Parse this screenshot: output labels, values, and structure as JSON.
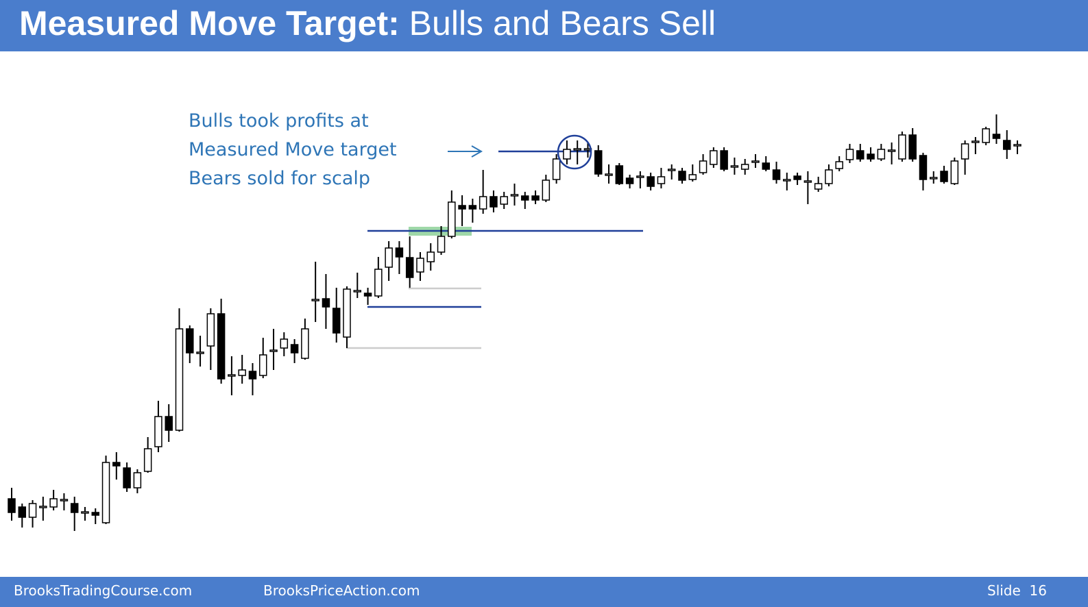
{
  "header": {
    "title": "Measured Move Target:",
    "subtitle": "Bulls and Bears Sell"
  },
  "annotation": [
    "Bulls took profits at",
    "Measured Move target",
    "Bears sold for scalp"
  ],
  "footer": {
    "left": "BrooksTradingCourse.com",
    "center": "BrooksPriceAction.com",
    "right": "Slide  16"
  },
  "chart_data": {
    "type": "candlestick",
    "up_color": "#ffffff",
    "down_color": "#000000",
    "open": [
      158,
      146,
      131,
      146,
      146,
      156,
      151,
      138,
      138,
      123,
      211,
      203,
      174,
      198,
      234,
      278,
      258,
      406,
      371,
      381,
      428,
      338,
      338,
      344,
      338,
      374,
      378,
      383,
      363,
      448,
      450,
      436,
      394,
      461,
      458,
      454,
      496,
      524,
      510,
      489,
      504,
      518,
      541,
      586,
      586,
      581,
      599,
      588,
      601,
      600,
      600,
      594,
      624,
      654,
      668,
      668,
      666,
      631,
      644,
      626,
      628,
      628,
      618,
      638,
      636,
      624,
      634,
      646,
      666,
      643,
      639,
      650,
      648,
      638,
      623,
      629,
      621,
      610,
      618,
      640,
      653,
      666,
      661,
      654,
      666,
      654,
      689,
      659,
      626,
      636,
      618,
      654,
      679,
      678,
      690,
      681,
      674
    ],
    "high": [
      174,
      151,
      156,
      161,
      171,
      166,
      161,
      146,
      144,
      221,
      226,
      211,
      201,
      248,
      301,
      296,
      436,
      411,
      396,
      436,
      450,
      366,
      368,
      356,
      393,
      406,
      401,
      391,
      421,
      504,
      486,
      466,
      468,
      488,
      466,
      511,
      534,
      534,
      541,
      518,
      531,
      556,
      608,
      601,
      596,
      638,
      608,
      606,
      618,
      606,
      608,
      631,
      661,
      681,
      681,
      678,
      674,
      646,
      648,
      631,
      636,
      634,
      641,
      646,
      641,
      646,
      661,
      671,
      671,
      656,
      654,
      661,
      658,
      650,
      634,
      634,
      636,
      628,
      646,
      658,
      676,
      676,
      671,
      676,
      678,
      694,
      699,
      663,
      636,
      644,
      656,
      681,
      686,
      701,
      719,
      696,
      681
    ],
    "low": [
      126,
      116,
      116,
      126,
      141,
      141,
      111,
      126,
      121,
      121,
      186,
      168,
      166,
      196,
      226,
      241,
      256,
      356,
      351,
      346,
      326,
      309,
      326,
      309,
      334,
      346,
      366,
      356,
      361,
      416,
      406,
      386,
      378,
      451,
      441,
      451,
      476,
      486,
      466,
      476,
      491,
      514,
      538,
      556,
      561,
      574,
      576,
      581,
      586,
      581,
      588,
      591,
      618,
      646,
      646,
      656,
      628,
      618,
      616,
      611,
      611,
      608,
      611,
      624,
      618,
      621,
      631,
      641,
      636,
      631,
      631,
      641,
      636,
      618,
      608,
      616,
      588,
      606,
      614,
      636,
      648,
      650,
      650,
      651,
      646,
      650,
      650,
      608,
      618,
      618,
      616,
      631,
      661,
      674,
      676,
      654,
      661
    ],
    "close": [
      138,
      131,
      151,
      146,
      158,
      156,
      138,
      138,
      134,
      211,
      206,
      174,
      196,
      231,
      278,
      258,
      406,
      371,
      371,
      428,
      333,
      338,
      346,
      333,
      368,
      374,
      391,
      371,
      406,
      448,
      438,
      400,
      464,
      461,
      454,
      493,
      524,
      511,
      481,
      509,
      518,
      541,
      591,
      581,
      581,
      599,
      584,
      599,
      601,
      594,
      594,
      623,
      654,
      668,
      668,
      668,
      632,
      631,
      618,
      618,
      628,
      614,
      628,
      638,
      623,
      631,
      651,
      666,
      639,
      643,
      646,
      650,
      639,
      624,
      623,
      624,
      621,
      618,
      638,
      650,
      668,
      654,
      654,
      668,
      666,
      689,
      654,
      624,
      626,
      621,
      651,
      676,
      679,
      698,
      684,
      668,
      674
    ]
  }
}
